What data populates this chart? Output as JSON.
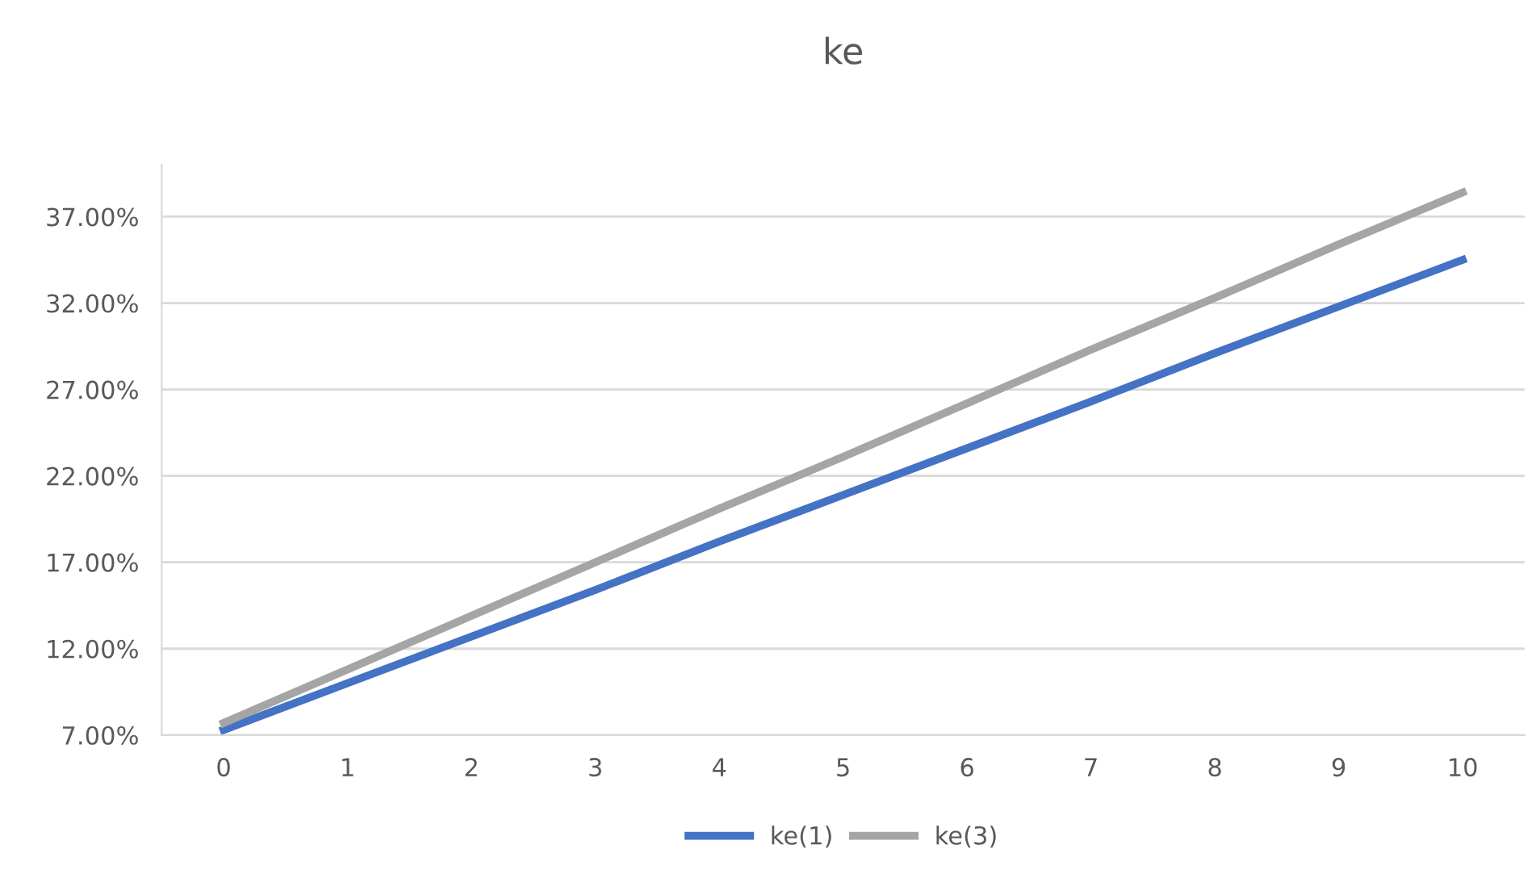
{
  "chart_data": {
    "type": "line",
    "title": "ke",
    "categories": [
      "0",
      "1",
      "2",
      "3",
      "4",
      "5",
      "6",
      "7",
      "8",
      "9",
      "10"
    ],
    "series": [
      {
        "name": "ke(1)",
        "color": "#4472c4",
        "values": [
          7.3,
          10.0,
          12.7,
          15.4,
          18.2,
          20.9,
          23.6,
          26.3,
          29.1,
          31.8,
          34.5
        ]
      },
      {
        "name": "ke(3)",
        "color": "#a5a5a5",
        "values": [
          7.7,
          10.8,
          13.9,
          17.0,
          20.1,
          23.1,
          26.2,
          29.3,
          32.3,
          35.4,
          38.4
        ]
      }
    ],
    "ylim": [
      7,
      40
    ],
    "yticks": [
      {
        "value": 7,
        "label": "7.00%"
      },
      {
        "value": 12,
        "label": "12.00%"
      },
      {
        "value": 17,
        "label": "17.00%"
      },
      {
        "value": 22,
        "label": "22.00%"
      },
      {
        "value": 27,
        "label": "27.00%"
      },
      {
        "value": 32,
        "label": "32.00%"
      },
      {
        "value": 37,
        "label": "37.00%"
      }
    ],
    "grid": "y",
    "legend": "bottom",
    "marker": "none",
    "line_style": "solid"
  }
}
